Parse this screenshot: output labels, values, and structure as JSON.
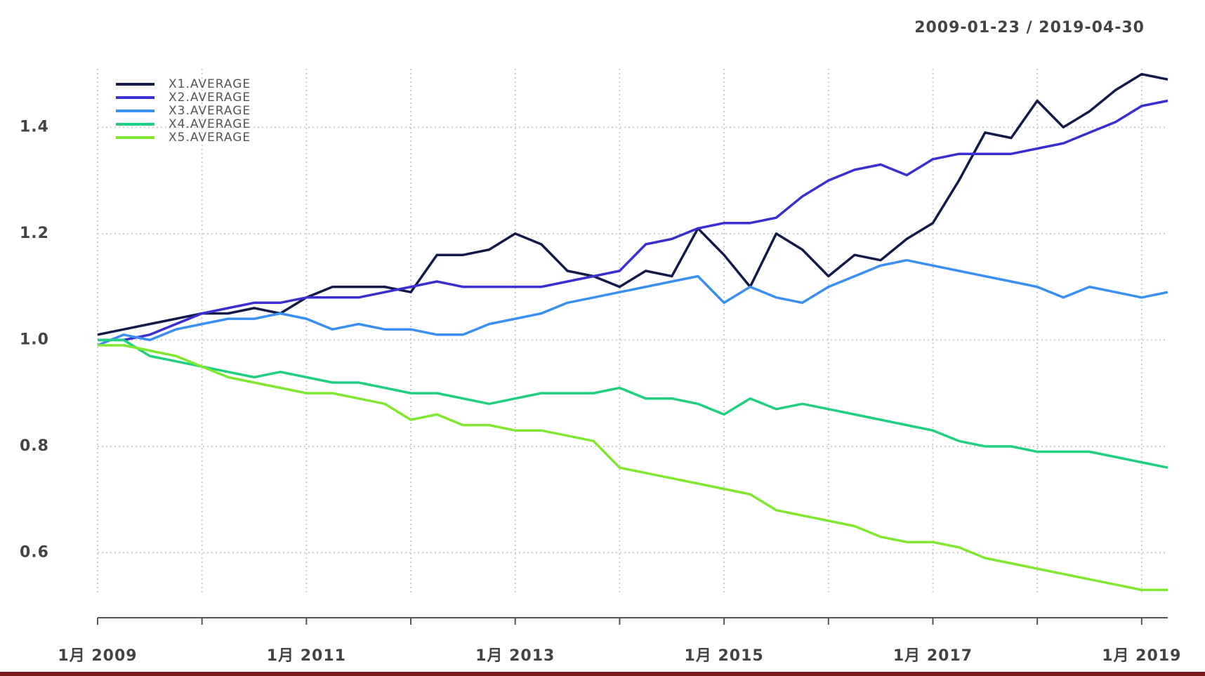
{
  "chart_data": {
    "type": "line",
    "title": "2009-01-23 / 2019-04-30",
    "x": [
      "2009-01",
      "2009-04",
      "2009-07",
      "2009-10",
      "2010-01",
      "2010-04",
      "2010-07",
      "2010-10",
      "2011-01",
      "2011-04",
      "2011-07",
      "2011-10",
      "2012-01",
      "2012-04",
      "2012-07",
      "2012-10",
      "2013-01",
      "2013-04",
      "2013-07",
      "2013-10",
      "2014-01",
      "2014-04",
      "2014-07",
      "2014-10",
      "2015-01",
      "2015-04",
      "2015-07",
      "2015-10",
      "2016-01",
      "2016-04",
      "2016-07",
      "2016-10",
      "2017-01",
      "2017-04",
      "2017-07",
      "2017-10",
      "2018-01",
      "2018-04",
      "2018-07",
      "2018-10",
      "2019-01",
      "2019-04"
    ],
    "series": [
      {
        "name": "X1.AVERAGE",
        "color": "#141a4a",
        "values": [
          1.01,
          1.02,
          1.03,
          1.04,
          1.05,
          1.05,
          1.06,
          1.05,
          1.08,
          1.1,
          1.1,
          1.1,
          1.09,
          1.16,
          1.16,
          1.17,
          1.2,
          1.18,
          1.13,
          1.12,
          1.1,
          1.13,
          1.12,
          1.21,
          1.16,
          1.1,
          1.2,
          1.17,
          1.12,
          1.16,
          1.15,
          1.19,
          1.22,
          1.3,
          1.39,
          1.38,
          1.45,
          1.4,
          1.43,
          1.47,
          1.5,
          1.49
        ]
      },
      {
        "name": "X2.AVERAGE",
        "color": "#3a2fd0",
        "values": [
          1.0,
          1.0,
          1.01,
          1.03,
          1.05,
          1.06,
          1.07,
          1.07,
          1.08,
          1.08,
          1.08,
          1.09,
          1.1,
          1.11,
          1.1,
          1.1,
          1.1,
          1.1,
          1.11,
          1.12,
          1.13,
          1.18,
          1.19,
          1.21,
          1.22,
          1.22,
          1.23,
          1.27,
          1.3,
          1.32,
          1.33,
          1.31,
          1.34,
          1.35,
          1.35,
          1.35,
          1.36,
          1.37,
          1.39,
          1.41,
          1.44,
          1.45
        ]
      },
      {
        "name": "X3.AVERAGE",
        "color": "#3a8ff0",
        "values": [
          0.99,
          1.01,
          1.0,
          1.02,
          1.03,
          1.04,
          1.04,
          1.05,
          1.04,
          1.02,
          1.03,
          1.02,
          1.02,
          1.01,
          1.01,
          1.03,
          1.04,
          1.05,
          1.07,
          1.08,
          1.09,
          1.1,
          1.11,
          1.12,
          1.07,
          1.1,
          1.08,
          1.07,
          1.1,
          1.12,
          1.14,
          1.15,
          1.14,
          1.13,
          1.12,
          1.11,
          1.1,
          1.08,
          1.1,
          1.09,
          1.08,
          1.09
        ]
      },
      {
        "name": "X4.AVERAGE",
        "color": "#20d080",
        "values": [
          1.0,
          1.0,
          0.97,
          0.96,
          0.95,
          0.94,
          0.93,
          0.94,
          0.93,
          0.92,
          0.92,
          0.91,
          0.9,
          0.9,
          0.89,
          0.88,
          0.89,
          0.9,
          0.9,
          0.9,
          0.91,
          0.89,
          0.89,
          0.88,
          0.86,
          0.89,
          0.87,
          0.88,
          0.87,
          0.86,
          0.85,
          0.84,
          0.83,
          0.81,
          0.8,
          0.8,
          0.79,
          0.79,
          0.79,
          0.78,
          0.77,
          0.76
        ]
      },
      {
        "name": "X5.AVERAGE",
        "color": "#80e830",
        "values": [
          0.99,
          0.99,
          0.98,
          0.97,
          0.95,
          0.93,
          0.92,
          0.91,
          0.9,
          0.9,
          0.89,
          0.88,
          0.85,
          0.86,
          0.84,
          0.84,
          0.83,
          0.83,
          0.82,
          0.81,
          0.76,
          0.75,
          0.74,
          0.73,
          0.72,
          0.71,
          0.68,
          0.67,
          0.66,
          0.65,
          0.63,
          0.62,
          0.62,
          0.61,
          0.59,
          0.58,
          0.57,
          0.56,
          0.55,
          0.54,
          0.53,
          0.53
        ]
      }
    ],
    "xlim": [
      "2009-01",
      "2019-04"
    ],
    "xticks": [
      {
        "value": "2009-01",
        "label": "1月 2009"
      },
      {
        "value": "2010-01"
      },
      {
        "value": "2011-01",
        "label": "1月 2011"
      },
      {
        "value": "2012-01"
      },
      {
        "value": "2013-01",
        "label": "1月 2013"
      },
      {
        "value": "2014-01"
      },
      {
        "value": "2015-01",
        "label": "1月 2015"
      },
      {
        "value": "2016-01"
      },
      {
        "value": "2017-01",
        "label": "1月 2017"
      },
      {
        "value": "2018-01"
      },
      {
        "value": "2019-01",
        "label": "1月 2019"
      }
    ],
    "ylim": [
      0.52,
      1.51
    ],
    "yticks": [
      0.6,
      0.8,
      {
        "value": 1,
        "label": "1.0"
      },
      1.2,
      1.4
    ],
    "grid": true,
    "legend": "topleft"
  }
}
